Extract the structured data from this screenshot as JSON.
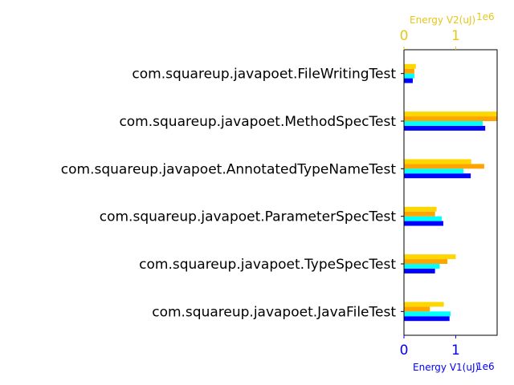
{
  "chart_data": {
    "type": "bar",
    "orientation": "horizontal",
    "categories": [
      "com.squareup.javapoet.FileWritingTest",
      "com.squareup.javapoet.MethodSpecTest",
      "com.squareup.javapoet.AnnotatedTypeNameTest",
      "com.squareup.javapoet.ParameterSpecTest",
      "com.squareup.javapoet.TypeSpecTest",
      "com.squareup.javapoet.JavaFileTest"
    ],
    "series": [
      {
        "axis": "bottom",
        "color": "#0000ff",
        "values": [
          0.17,
          1.57,
          1.29,
          0.76,
          0.6,
          0.88
        ]
      },
      {
        "axis": "bottom",
        "color": "#00ffff",
        "values": [
          0.2,
          1.52,
          1.15,
          0.73,
          0.69,
          0.9
        ]
      },
      {
        "axis": "top",
        "color": "#ffa500",
        "values": [
          0.2,
          1.8,
          1.55,
          0.6,
          0.84,
          0.5
        ]
      },
      {
        "axis": "top",
        "color": "#ffd700",
        "values": [
          0.23,
          1.8,
          1.3,
          0.63,
          1.0,
          0.77
        ]
      }
    ],
    "xaxis_bottom": {
      "label": "Energy V1(uJ)",
      "offset_text": "1e6",
      "color": "#0000ff",
      "range": [
        0,
        1.8
      ],
      "ticks": [
        {
          "value": 0,
          "label": "0"
        },
        {
          "value": 1,
          "label": "1"
        }
      ]
    },
    "xaxis_top": {
      "label": "Energy V2(uJ)",
      "offset_text": "1e6",
      "color": "#e6c619",
      "range": [
        0,
        1.8
      ],
      "ticks": [
        {
          "value": 0,
          "label": "0"
        },
        {
          "value": 1,
          "label": "1"
        }
      ]
    },
    "grid": false,
    "legend": "none"
  }
}
